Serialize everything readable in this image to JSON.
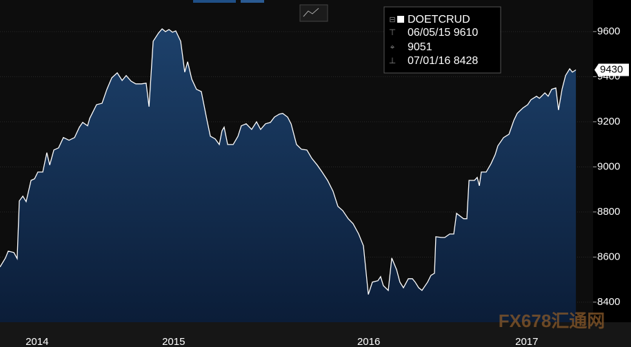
{
  "chart_data": {
    "type": "area",
    "legend": {
      "title": "DOETCRUD",
      "high": "06/05/15 9610",
      "average": "9051",
      "low": "07/01/16 8428"
    },
    "watermark": "FX678汇通网",
    "series": [
      {
        "name": "DOETCRUD",
        "color": "#ffffff",
        "fill": "#183860",
        "x": [
          2014.61,
          2014.638,
          2014.652,
          2014.681,
          2014.698,
          2014.709,
          2014.727,
          2014.744,
          2014.769,
          2014.787,
          2014.804,
          2014.829,
          2014.85,
          2014.865,
          2014.886,
          2014.91,
          2014.935,
          2014.964,
          2014.992,
          2015.017,
          2015.034,
          2015.059,
          2015.07,
          2015.105,
          2015.133,
          2015.158,
          2015.183,
          2015.211,
          2015.236,
          2015.257,
          2015.282,
          2015.306,
          2015.335,
          2015.359,
          2015.374,
          2015.395,
          2015.423,
          2015.441,
          2015.458,
          2015.476,
          2015.494,
          2015.511,
          2015.536,
          2015.557,
          2015.572,
          2015.593,
          2015.617,
          2015.642,
          2015.671,
          2015.688,
          2015.713,
          2015.734,
          2015.748,
          2015.759,
          2015.777,
          2015.805,
          2015.83,
          2015.847,
          2015.872,
          2015.9,
          2015.925,
          2015.946,
          2015.971,
          2015.996,
          2016.017,
          2016.042,
          2016.059,
          2016.084,
          2016.102,
          2016.13,
          2016.155,
          2016.183,
          2016.208,
          2016.236,
          2016.261,
          2016.289,
          2016.317,
          2016.342,
          2016.367,
          2016.395,
          2016.42,
          2016.448,
          2016.473,
          2016.498,
          2016.519,
          2016.547,
          2016.561,
          2016.575,
          2016.6,
          2016.618,
          2016.643,
          2016.66,
          2016.678,
          2016.703,
          2016.724,
          2016.738,
          2016.756,
          2016.773,
          2016.802,
          2016.819,
          2016.837,
          2016.844,
          2016.872,
          2016.89,
          2016.915,
          2016.936,
          2016.95,
          2016.986,
          2017.003,
          2017.014,
          2017.042,
          2017.056,
          2017.067,
          2017.077,
          2017.102,
          2017.127,
          2017.148,
          2017.162,
          2017.191,
          2017.219,
          2017.244,
          2017.261,
          2017.29,
          2017.315,
          2017.332,
          2017.36,
          2017.375,
          2017.403,
          2017.42,
          2017.438,
          2017.459,
          2017.473,
          2017.491,
          2017.509,
          2017.53,
          2017.544,
          2017.562
        ],
        "values": [
          8556,
          8596,
          8626,
          8620,
          8593,
          8849,
          8870,
          8846,
          8940,
          8947,
          8977,
          8977,
          9063,
          9008,
          9075,
          9084,
          9130,
          9118,
          9130,
          9176,
          9197,
          9182,
          9215,
          9276,
          9282,
          9344,
          9395,
          9417,
          9383,
          9405,
          9380,
          9368,
          9368,
          9371,
          9267,
          9557,
          9594,
          9612,
          9600,
          9609,
          9597,
          9603,
          9557,
          9420,
          9466,
          9389,
          9344,
          9334,
          9206,
          9136,
          9124,
          9099,
          9160,
          9176,
          9099,
          9099,
          9136,
          9182,
          9191,
          9166,
          9200,
          9166,
          9191,
          9197,
          9221,
          9234,
          9237,
          9221,
          9191,
          9099,
          9078,
          9075,
          9038,
          9008,
          8977,
          8940,
          8892,
          8825,
          8806,
          8770,
          8748,
          8703,
          8650,
          8434,
          8489,
          8495,
          8513,
          8473,
          8452,
          8596,
          8544,
          8489,
          8464,
          8504,
          8504,
          8489,
          8464,
          8452,
          8489,
          8519,
          8528,
          8690,
          8687,
          8687,
          8702,
          8702,
          8794,
          8770,
          8770,
          8940,
          8940,
          8953,
          8916,
          8977,
          8977,
          9014,
          9054,
          9093,
          9130,
          9145,
          9206,
          9237,
          9261,
          9276,
          9298,
          9313,
          9304,
          9328,
          9313,
          9344,
          9350,
          9252,
          9344,
          9405,
          9435,
          9420,
          9430
        ]
      }
    ],
    "xlim": [
      2014.61,
      2017.65
    ],
    "xticks": [
      {
        "value": 2014.8,
        "label": "2014"
      },
      {
        "value": 2015.5,
        "label": "2015"
      },
      {
        "value": 2016.5,
        "label": "2016"
      },
      {
        "value": 2017.31,
        "label": "2017"
      }
    ],
    "ylim": [
      8311,
      9740
    ],
    "yticks": [
      8400,
      8600,
      8800,
      9000,
      9200,
      9400,
      9600
    ],
    "grid": true
  }
}
